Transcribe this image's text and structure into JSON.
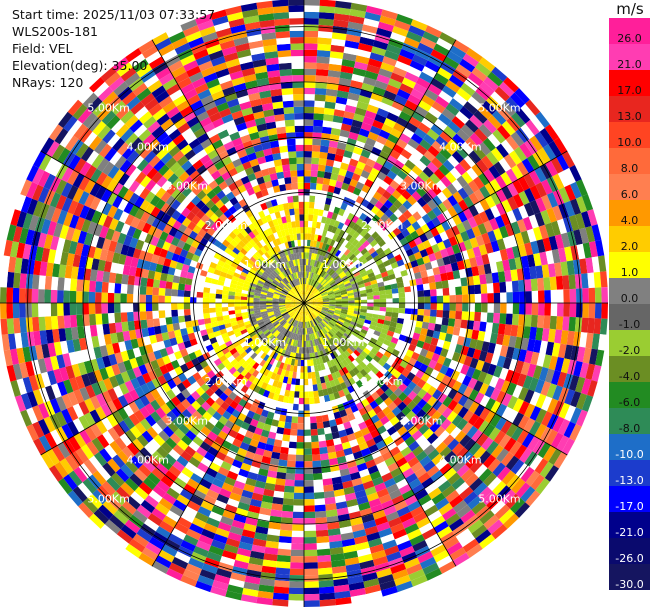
{
  "info": {
    "start_time": "Start time: 2025/11/03 07:33:57",
    "station": "WLS200s-181",
    "field": "Field: VEL",
    "elevation": "Elevation(deg): 35.00",
    "nrays": "NRays: 120"
  },
  "chart_data": {
    "type": "heatmap",
    "projection": "polar-ppi",
    "colorbar": {
      "unit": "m/s",
      "ticks": [
        "26.0",
        "21.0",
        "17.0",
        "13.0",
        "10.0",
        "8.0",
        "6.0",
        "4.0",
        "2.0",
        "1.0",
        "0.0",
        "-1.0",
        "-2.0",
        "-4.0",
        "-6.0",
        "-8.0",
        "-10.0",
        "-13.0",
        "-17.0",
        "-21.0",
        "-26.0",
        "-30.0"
      ],
      "colors_top_to_bottom": [
        "#ff1f9a",
        "#ff3db2",
        "#ff0000",
        "#e8261f",
        "#ff4422",
        "#ff6a3a",
        "#ff7f50",
        "#ff9900",
        "#ffcc00",
        "#ffff00",
        "#808080",
        "#666666",
        "#9acd32",
        "#6b8e23",
        "#228b22",
        "#2e8b57",
        "#1e6ec8",
        "#1c3ccc",
        "#0000ff",
        "#00008b",
        "#0a0a6e",
        "#151560"
      ]
    },
    "range_rings_km": [
      1,
      2,
      3,
      4,
      5
    ],
    "ring_labels": [
      "1.00Km",
      "2.00Km",
      "3.00Km",
      "4.00Km",
      "5.00Km"
    ],
    "max_range_km": 5.5,
    "grid": true
  }
}
